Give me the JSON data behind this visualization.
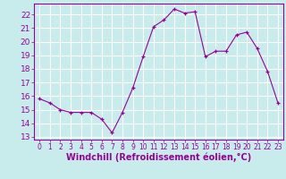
{
  "x": [
    0,
    1,
    2,
    3,
    4,
    5,
    6,
    7,
    8,
    9,
    10,
    11,
    12,
    13,
    14,
    15,
    16,
    17,
    18,
    19,
    20,
    21,
    22,
    23
  ],
  "y": [
    15.8,
    15.5,
    15.0,
    14.8,
    14.8,
    14.8,
    14.3,
    13.3,
    14.8,
    16.6,
    18.9,
    21.1,
    21.6,
    22.4,
    22.1,
    22.2,
    18.9,
    19.3,
    19.3,
    20.5,
    20.7,
    19.5,
    17.8,
    15.5
  ],
  "line_color": "#990099",
  "marker": "+",
  "bg_color": "#c8ecec",
  "grid_color": "#aadddd",
  "xlabel": "Windchill (Refroidissement éolien,°C)",
  "ylim": [
    12.8,
    22.8
  ],
  "xlim": [
    -0.5,
    23.5
  ],
  "yticks": [
    13,
    14,
    15,
    16,
    17,
    18,
    19,
    20,
    21,
    22
  ],
  "xticks": [
    0,
    1,
    2,
    3,
    4,
    5,
    6,
    7,
    8,
    9,
    10,
    11,
    12,
    13,
    14,
    15,
    16,
    17,
    18,
    19,
    20,
    21,
    22,
    23
  ],
  "tick_color": "#990099",
  "label_color": "#990099",
  "label_fontsize": 7,
  "tick_fontsize": 6.5,
  "xtick_fontsize": 5.5
}
